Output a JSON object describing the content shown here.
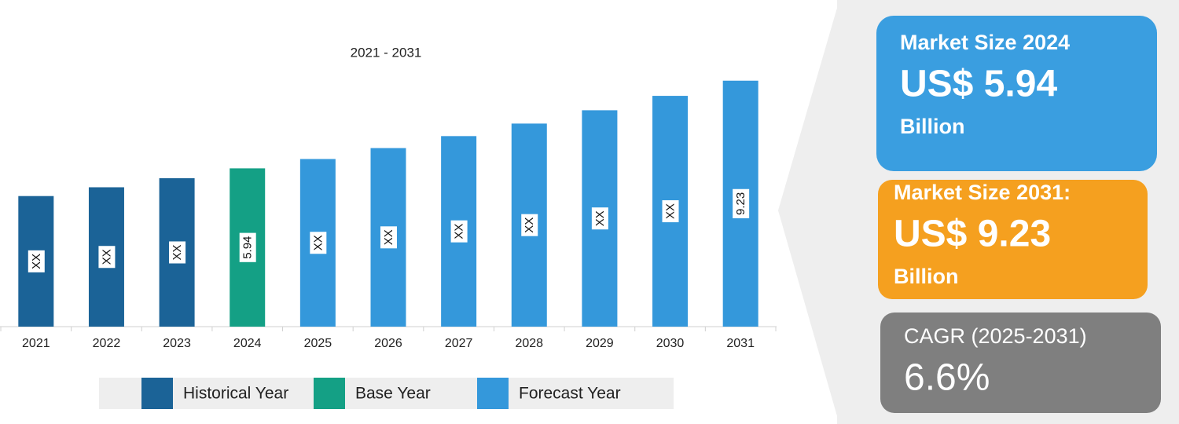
{
  "chart_data": {
    "type": "bar",
    "subtitle": "2021 - 2031",
    "categories": [
      "2021",
      "2022",
      "2023",
      "2024",
      "2025",
      "2026",
      "2027",
      "2028",
      "2029",
      "2030",
      "2031"
    ],
    "series": [
      {
        "name": "Historical Year",
        "color": "#1b6397",
        "values": [
          4.9,
          5.23,
          5.57,
          null,
          null,
          null,
          null,
          null,
          null,
          null,
          null
        ],
        "value_labels": [
          "XX",
          "XX",
          "XX",
          null,
          null,
          null,
          null,
          null,
          null,
          null,
          null
        ]
      },
      {
        "name": "Base Year",
        "color": "#14a085",
        "values": [
          null,
          null,
          null,
          5.94,
          null,
          null,
          null,
          null,
          null,
          null,
          null
        ],
        "value_labels": [
          null,
          null,
          null,
          null,
          null,
          null,
          null,
          null,
          null,
          null,
          null
        ]
      },
      {
        "name": "Forecast Year",
        "color": "#3498db",
        "values": [
          null,
          null,
          null,
          null,
          6.29,
          6.7,
          7.15,
          7.62,
          8.12,
          8.66,
          9.23
        ],
        "value_labels": [
          null,
          null,
          null,
          null,
          "XX",
          "XX",
          "XX",
          "XX",
          "XX",
          "XX",
          null
        ]
      }
    ],
    "ylim": [
      0,
      9.9
    ],
    "grid": false
  },
  "cards": [
    {
      "title": "Market Size 2024",
      "value": "US$ 5.94",
      "unit": "Billion"
    },
    {
      "title": "Market Size 2031:",
      "value": "US$ 9.23",
      "unit": "Billion"
    },
    {
      "title": "CAGR (2025-2031)",
      "value": "6.6%"
    }
  ]
}
